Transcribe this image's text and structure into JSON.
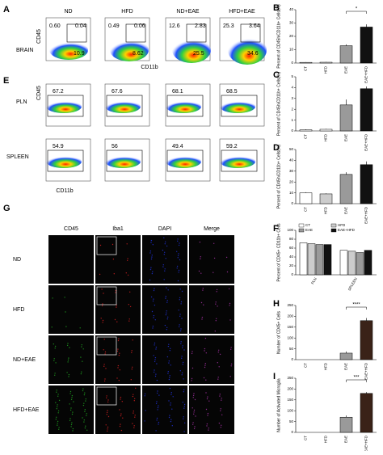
{
  "panels": {
    "A": {
      "label": "A",
      "groups": [
        "ND",
        "HFD",
        "ND+EAE",
        "HFD+EAE"
      ],
      "row": "BRAIN",
      "y_axis": "CD45",
      "x_axis": "CD11b",
      "gates": [
        [
          "0.60",
          "0.04",
          "10.9"
        ],
        [
          "0.49",
          "0.06",
          "8.62"
        ],
        [
          "12.6",
          "2.83",
          "25.5"
        ],
        [
          "25.3",
          "3.64",
          "34.6"
        ]
      ]
    },
    "E": {
      "label": "E",
      "y_axis": "CD45",
      "x_axis": "CD11b",
      "rows": [
        {
          "name": "PLN",
          "gates": [
            "67.2",
            "67.6",
            "68.1",
            "68.5"
          ]
        },
        {
          "name": "SPLEEN",
          "gates": [
            "54.9",
            "56",
            "49.4",
            "59.2"
          ]
        }
      ]
    },
    "G": {
      "label": "G",
      "columns": [
        "CD45",
        "Iba1",
        "DAPI",
        "Merge"
      ],
      "rows": [
        "ND",
        "HFD",
        "ND+EAE",
        "HFD+EAE"
      ]
    }
  },
  "chart_data": [
    {
      "type": "bar",
      "panel": "B",
      "y_label": "Percent of CD45hiCD11b+ Cells(%)",
      "categories": [
        "CT",
        "HFD",
        "EAE",
        "EAE+HFD"
      ],
      "values": [
        0.5,
        0.6,
        13,
        27
      ],
      "errors": [
        0.2,
        0.2,
        1,
        2
      ],
      "colors": [
        "#ffffff",
        "#ffffff",
        "#9a9a9a",
        "#111111"
      ],
      "ylim": [
        0,
        40
      ],
      "yticks": [
        0,
        10,
        20,
        30,
        40
      ],
      "significance": "*"
    },
    {
      "type": "bar",
      "panel": "C",
      "y_label": "Percent of CD45hiCD11b+ Cells(%)",
      "categories": [
        "CT",
        "HFD",
        "EAE",
        "EAE+HFD"
      ],
      "values": [
        0.1,
        0.15,
        2.4,
        3.9
      ],
      "errors": [
        0.05,
        0.05,
        0.5,
        0.2
      ],
      "colors": [
        "#ffffff",
        "#ffffff",
        "#9a9a9a",
        "#111111"
      ],
      "ylim": [
        0,
        5
      ],
      "yticks": [
        0,
        1,
        2,
        3,
        4,
        5
      ]
    },
    {
      "type": "bar",
      "panel": "D",
      "y_label": "Percent of CD45hiCD11b+ Cells(%)",
      "categories": [
        "CT",
        "HFD",
        "EAE",
        "EAE+HFD"
      ],
      "values": [
        10,
        9,
        27,
        36
      ],
      "errors": [
        0.5,
        0.5,
        2,
        3
      ],
      "colors": [
        "#ffffff",
        "#cccccc",
        "#9a9a9a",
        "#111111"
      ],
      "ylim": [
        0,
        50
      ],
      "yticks": [
        0,
        10,
        20,
        30,
        40,
        50
      ]
    },
    {
      "type": "bar",
      "panel": "F",
      "y_label": "Percent of CD45+ CD11b+ Cells",
      "categories": [
        "PLN",
        "SPLEEN"
      ],
      "series": [
        {
          "name": "CT",
          "color": "#ffffff",
          "values": [
            72,
            55
          ]
        },
        {
          "name": "HFD",
          "color": "#cccccc",
          "values": [
            70,
            53
          ]
        },
        {
          "name": "EAE",
          "color": "#9a9a9a",
          "values": [
            68,
            50
          ]
        },
        {
          "name": "EAE+HFD",
          "color": "#111111",
          "values": [
            68,
            55
          ]
        }
      ],
      "ylim": [
        0,
        100
      ],
      "yticks": [
        0,
        20,
        40,
        60,
        80,
        100
      ]
    },
    {
      "type": "bar",
      "panel": "H",
      "y_label": "Number of CD45+ Cells",
      "categories": [
        "CT",
        "HFD",
        "EAE",
        "EAE+HFD"
      ],
      "values": [
        0,
        0,
        30,
        180
      ],
      "errors": [
        0,
        0,
        8,
        12
      ],
      "colors": [
        "#ffffff",
        "#ffffff",
        "#9a9a9a",
        "#3a2218"
      ],
      "ylim": [
        0,
        250
      ],
      "yticks": [
        0,
        50,
        100,
        150,
        200,
        250
      ],
      "significance": "****"
    },
    {
      "type": "bar",
      "panel": "I",
      "y_label": "Number of Activated Microglia",
      "categories": [
        "CT",
        "HFD",
        "EAE",
        "EAE+HFD"
      ],
      "values": [
        0,
        0,
        70,
        180
      ],
      "errors": [
        0,
        0,
        8,
        6
      ],
      "colors": [
        "#ffffff",
        "#ffffff",
        "#9a9a9a",
        "#3a2218"
      ],
      "ylim": [
        0,
        250
      ],
      "yticks": [
        0,
        50,
        100,
        150,
        200,
        250
      ],
      "significance": "***"
    }
  ]
}
